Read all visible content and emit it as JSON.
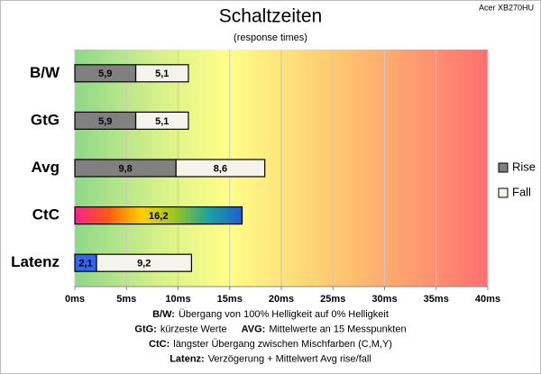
{
  "chart_data": {
    "type": "stacked-bar-horizontal",
    "title": "Schaltzeiten",
    "subtitle": "(response times)",
    "corner_label": "Acer XB270HU",
    "categories": [
      "B/W",
      "GtG",
      "Avg",
      "CtC",
      "Latenz"
    ],
    "series": [
      {
        "name": "Rise",
        "color": "#808080",
        "colors": [
          "#808080",
          "#808080",
          "#808080",
          null,
          "#3366ee"
        ],
        "label_color": "#ffffff",
        "values": [
          5.9,
          5.9,
          9.8,
          null,
          2.1
        ],
        "value_labels": [
          "5,9",
          "5,9",
          "9,8",
          null,
          "2,1"
        ]
      },
      {
        "name": "Fall",
        "color": "#f4f4ec",
        "label_color": "#000000",
        "values": [
          5.1,
          5.1,
          8.6,
          null,
          9.2
        ],
        "value_labels": [
          "5,1",
          "5,1",
          "8,6",
          null,
          "9,2"
        ]
      },
      {
        "gradient": [
          "#ff1f8f",
          "#ff5a10",
          "#ffd000",
          "#9ac520",
          "#1aa3a0",
          "#1f5fcf"
        ],
        "label_color": "#000000",
        "values": [
          null,
          null,
          null,
          16.2,
          null
        ],
        "value_labels": [
          null,
          null,
          null,
          "16,2",
          null
        ]
      }
    ],
    "xlim": [
      0,
      40
    ],
    "xticks": [
      {
        "value": 0,
        "label": "0ms"
      },
      {
        "value": 5,
        "label": "5ms"
      },
      {
        "value": 10,
        "label": "10ms"
      },
      {
        "value": 15,
        "label": "15ms"
      },
      {
        "value": 20,
        "label": "20ms"
      },
      {
        "value": 25,
        "label": "25ms"
      },
      {
        "value": 30,
        "label": "30ms"
      },
      {
        "value": 35,
        "label": "35ms"
      },
      {
        "value": 40,
        "label": "40ms"
      }
    ],
    "grid": true,
    "legend": "right",
    "notes": [
      [
        {
          "label": "B/W:",
          "text": "Übergang von 100% Helligkeit auf 0% Helligkeit"
        }
      ],
      [
        {
          "label": "GtG:",
          "text": "kürzeste Werte"
        },
        {
          "label": "AVG:",
          "text": "Mittelwerte an 15 Messpunkten"
        }
      ],
      [
        {
          "label": "CtC:",
          "text": "längster Übergang zwischen Mischfarben (C,M,Y)"
        }
      ],
      [
        {
          "label": "Latenz:",
          "text": "Verzögerung + Mittelwert Avg rise/fall"
        }
      ]
    ]
  }
}
